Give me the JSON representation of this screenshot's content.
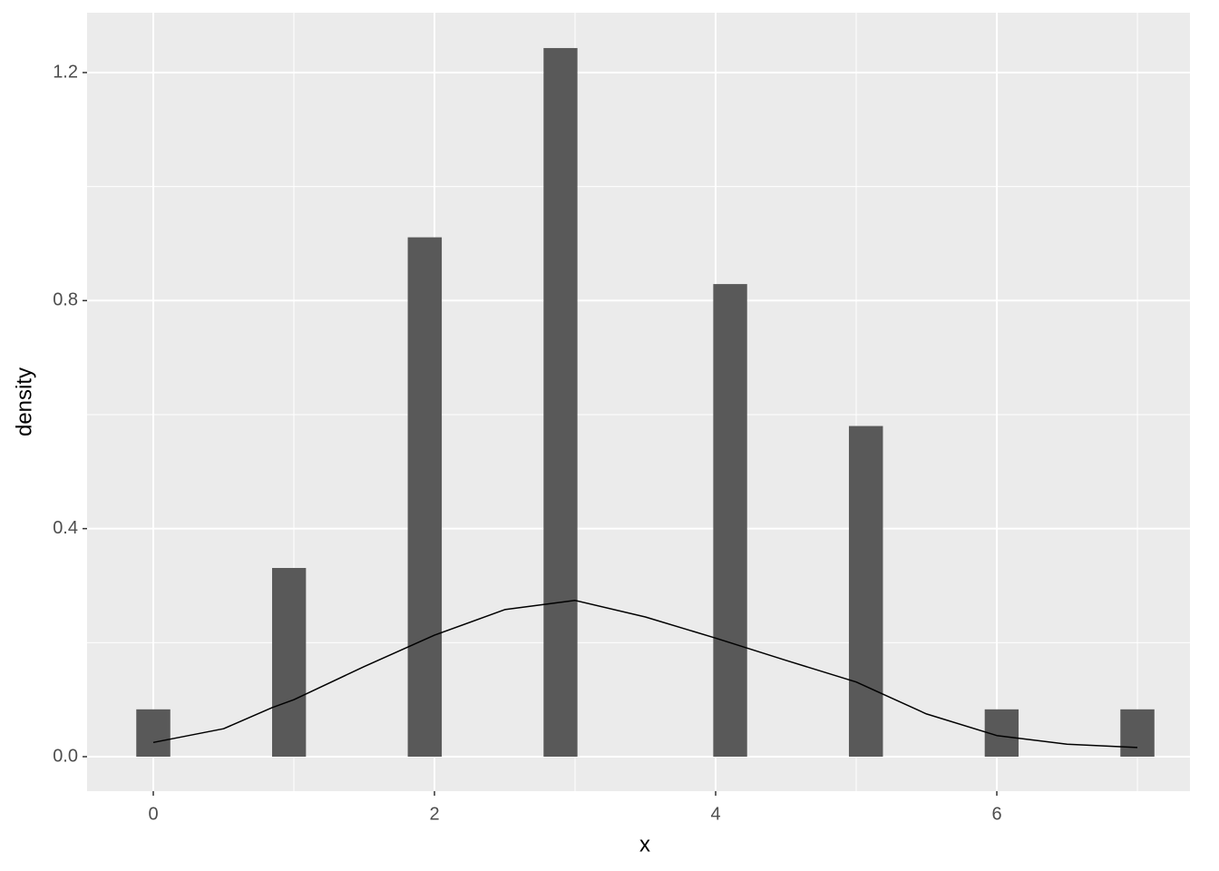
{
  "chart_data": {
    "type": "histogram",
    "xlabel": "x",
    "ylabel": "density",
    "bins": [
      -0.121,
      0.121,
      0.362,
      0.603,
      0.845,
      1.086,
      1.328,
      1.569,
      1.81,
      2.052,
      2.293,
      2.534,
      2.776,
      3.017,
      3.259,
      3.5,
      3.741,
      3.983,
      4.224,
      4.466,
      4.707,
      4.948,
      5.19,
      5.431,
      5.672,
      5.914,
      6.155,
      6.397,
      6.638,
      6.879,
      7.121
    ],
    "values": [
      0.083,
      0,
      0,
      0,
      0.331,
      0,
      0,
      0,
      0.911,
      0,
      0,
      0,
      1.243,
      0,
      0,
      0,
      0,
      0.829,
      0,
      0,
      0,
      0.58,
      0,
      0,
      0,
      0.083,
      0,
      0,
      0,
      0.083
    ],
    "color": "#595959",
    "density_line": {
      "x": [
        0,
        0.5,
        0.845,
        1,
        1.5,
        2,
        2.5,
        3,
        3.5,
        4,
        4.5,
        5,
        5.5,
        6,
        6.5,
        7
      ],
      "values": [
        0.025,
        0.049,
        0.086,
        0.1,
        0.158,
        0.213,
        0.258,
        0.274,
        0.245,
        0.208,
        0.169,
        0.131,
        0.075,
        0.037,
        0.022,
        0.016
      ],
      "color": "#000000"
    },
    "xlim": [
      -0.471,
      7.374
    ],
    "ylim": [
      -0.0605,
      1.305
    ],
    "xticks": [
      0,
      2,
      4,
      6
    ],
    "yticks": [
      {
        "value": 0,
        "label": "0.0"
      },
      0.4,
      0.8,
      1.2
    ],
    "grid": true
  }
}
